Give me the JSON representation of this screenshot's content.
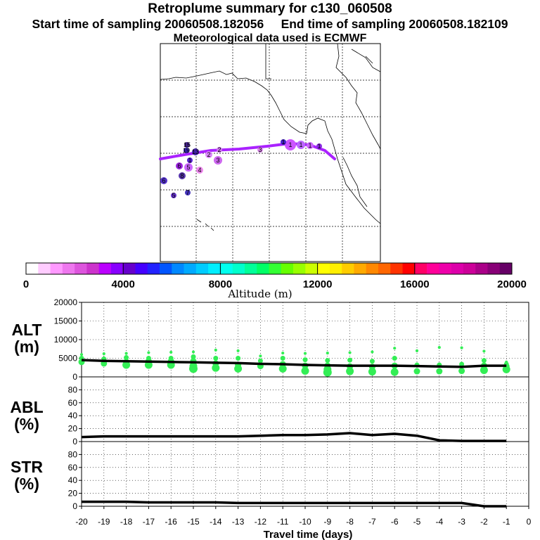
{
  "header": {
    "title": "Retroplume summary for c130_060508",
    "start_label": "Start time of sampling 20060508.182056",
    "end_label": "End time of sampling 20060508.182109",
    "met_label": "Meteorological data used is ECMWF"
  },
  "colorbar": {
    "title": "Altitude (m)",
    "tick_labels": [
      "0",
      "4000",
      "8000",
      "12000",
      "16000",
      "20000"
    ],
    "colors": [
      "#ffffff",
      "#ffccff",
      "#ff99ff",
      "#ee77ee",
      "#dd55dd",
      "#cc33cc",
      "#bb00ff",
      "#8800ff",
      "#6600cc",
      "#4400ff",
      "#2222ff",
      "#0055ff",
      "#0088ff",
      "#00aaff",
      "#00ccff",
      "#00eeff",
      "#00ffee",
      "#00ffcc",
      "#00ff99",
      "#00ff66",
      "#33ff33",
      "#66ff00",
      "#99ff00",
      "#ccff00",
      "#ffff00",
      "#ffee00",
      "#ffcc00",
      "#ffaa00",
      "#ff8800",
      "#ff6600",
      "#ff3300",
      "#ff0000",
      "#ff0066",
      "#ff0099",
      "#ee00aa",
      "#dd00aa",
      "#cc0099",
      "#aa0088",
      "#880077",
      "#660066"
    ]
  },
  "map": {
    "trajectory_color": "#aa22ff",
    "clusters": [
      {
        "label": "1",
        "color": "#cc55ff"
      },
      {
        "label": "1",
        "color": "#bb66ff"
      },
      {
        "label": "1",
        "color": "#cc66ff"
      },
      {
        "label": "1",
        "color": "#8a2be2"
      },
      {
        "label": "1",
        "color": "#4422cc"
      },
      {
        "label": "2",
        "color": "#dd88ff"
      },
      {
        "label": "2",
        "color": "#cc77ee"
      },
      {
        "label": "3",
        "color": "#cc66ee"
      },
      {
        "label": "3",
        "color": "#dd88ee"
      },
      {
        "label": "4",
        "color": "#ee88ee"
      },
      {
        "label": "5",
        "color": "#cc66ff"
      },
      {
        "label": "6",
        "color": "#9922dd"
      },
      {
        "label": "8",
        "color": "#5533aa"
      },
      {
        "label": "1",
        "color": "#5522cc"
      },
      {
        "label": "7",
        "color": "#4433bb"
      },
      {
        "label": "5",
        "color": "#6633cc"
      },
      {
        "label": "19",
        "color": "#3322aa"
      },
      {
        "label": "6",
        "color": "#5533cc"
      },
      {
        "label": "13",
        "color": "#4422aa"
      },
      {
        "label": "15",
        "color": "#442288"
      }
    ]
  },
  "x_axis": {
    "label": "Travel time (days)",
    "ticks": [
      "-20",
      "-19",
      "-18",
      "-17",
      "-16",
      "-15",
      "-14",
      "-13",
      "-12",
      "-11",
      "-10",
      "-9",
      "-8",
      "-7",
      "-6",
      "-5",
      "-4",
      "-3",
      "-2",
      "-1",
      "0"
    ]
  },
  "chart_data": [
    {
      "type": "line",
      "panel_label": "ALT\n(m)",
      "label_line1": "ALT",
      "label_line2": "(m)",
      "ylim": [
        0,
        20000
      ],
      "y_ticks": [
        "0",
        "5000",
        "10000",
        "15000",
        "20000"
      ],
      "x": [
        -20,
        -19,
        -18,
        -17,
        -16,
        -15,
        -14,
        -13,
        -12,
        -11,
        -10,
        -9,
        -8,
        -7,
        -6,
        -5,
        -4,
        -3,
        -2,
        -1
      ],
      "values": [
        4500,
        4300,
        4200,
        4100,
        4000,
        3900,
        3800,
        3700,
        3500,
        3400,
        3200,
        3100,
        3000,
        3000,
        3000,
        2900,
        2800,
        2700,
        3000,
        3000
      ],
      "scatter_color": "#33ee55",
      "scatter": [
        {
          "x": -20,
          "y": [
            6000,
            5000,
            4000
          ]
        },
        {
          "x": -19,
          "y": [
            6200,
            4800,
            3600
          ]
        },
        {
          "x": -18,
          "y": [
            6300,
            5200,
            4000,
            3200
          ]
        },
        {
          "x": -17,
          "y": [
            6500,
            5000,
            4200,
            3200
          ]
        },
        {
          "x": -16,
          "y": [
            6600,
            5000,
            4200,
            3200
          ]
        },
        {
          "x": -15,
          "y": [
            6700,
            5400,
            4200,
            2900,
            2200
          ]
        },
        {
          "x": -14,
          "y": [
            7200,
            5000,
            3600,
            2400
          ]
        },
        {
          "x": -13,
          "y": [
            7000,
            5000,
            3200,
            2200
          ]
        },
        {
          "x": -12,
          "y": [
            5600,
            4300,
            2900
          ]
        },
        {
          "x": -11,
          "y": [
            6400,
            5000,
            3400,
            2200
          ]
        },
        {
          "x": -10,
          "y": [
            6300,
            4600,
            3000,
            1600
          ]
        },
        {
          "x": -9,
          "y": [
            6400,
            4400,
            3000,
            2000,
            1200
          ]
        },
        {
          "x": -8,
          "y": [
            6500,
            4500,
            2800,
            1500
          ]
        },
        {
          "x": -7,
          "y": [
            6700,
            4200,
            2700,
            1400
          ]
        },
        {
          "x": -6,
          "y": [
            7700,
            5000,
            3000,
            1300
          ]
        },
        {
          "x": -5,
          "y": [
            7000,
            3200,
            1500
          ]
        },
        {
          "x": -4,
          "y": [
            7900,
            3200,
            1500
          ]
        },
        {
          "x": -3,
          "y": [
            7800,
            3400,
            1600
          ]
        },
        {
          "x": -2,
          "y": [
            6900,
            4400,
            3000,
            1800
          ]
        },
        {
          "x": -1,
          "y": [
            4000,
            3400,
            2800,
            2000
          ]
        }
      ]
    },
    {
      "type": "line",
      "panel_label": "ABL\n(%)",
      "label_line1": "ABL",
      "label_line2": "(%)",
      "ylim": [
        0,
        100
      ],
      "y_ticks": [
        "0",
        "20",
        "40",
        "60",
        "80"
      ],
      "x": [
        -20,
        -19,
        -18,
        -17,
        -16,
        -15,
        -14,
        -13,
        -12,
        -11,
        -10,
        -9,
        -8,
        -7,
        -6,
        -5,
        -4,
        -3,
        -2,
        -1
      ],
      "values": [
        7,
        8,
        8,
        8,
        8,
        8,
        8,
        8,
        9,
        10,
        10,
        11,
        13,
        10,
        12,
        9,
        2,
        1,
        1,
        1
      ]
    },
    {
      "type": "line",
      "panel_label": "STR\n(%)",
      "label_line1": "STR",
      "label_line2": "(%)",
      "ylim": [
        0,
        100
      ],
      "y_ticks": [
        "0",
        "20",
        "40",
        "60",
        "80"
      ],
      "x": [
        -20,
        -19,
        -18,
        -17,
        -16,
        -15,
        -14,
        -13,
        -12,
        -11,
        -10,
        -9,
        -8,
        -7,
        -6,
        -5,
        -4,
        -3,
        -2,
        -1
      ],
      "values": [
        7,
        7,
        7,
        6,
        6,
        6,
        6,
        5,
        5,
        5,
        5,
        5,
        5,
        5,
        5,
        5,
        5,
        5,
        0,
        0
      ]
    }
  ]
}
